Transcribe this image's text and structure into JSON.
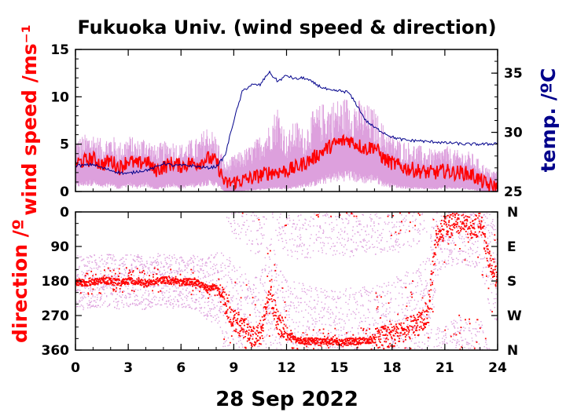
{
  "chart_data": [
    {
      "type": "line",
      "panel": "wind",
      "title": "Fukuoka Univ. (wind speed & direction)",
      "ylabel": "wind speed /ms⁻¹",
      "y2label": "temp. /ºC",
      "xlim": [
        0,
        24
      ],
      "ylim": [
        0,
        15
      ],
      "y2lim": [
        25,
        37
      ],
      "xticks": [
        "0",
        "3",
        "6",
        "9",
        "12",
        "15",
        "18",
        "21",
        "24"
      ],
      "yticks": [
        "0",
        "5",
        "10",
        "15"
      ],
      "y2ticks": [
        "25",
        "30",
        "35"
      ],
      "colors": {
        "mean": "#ff0000",
        "gust_range": "#dda0dd",
        "temperature": "#00008b"
      },
      "series": [
        {
          "key": "wind_mean",
          "x": [
            0,
            0.5,
            1,
            1.5,
            2,
            2.5,
            3,
            3.5,
            4,
            4.5,
            5,
            5.5,
            6,
            6.5,
            7,
            7.5,
            8,
            8.5,
            9,
            9.5,
            10,
            10.5,
            11,
            11.5,
            12,
            12.5,
            13,
            13.5,
            14,
            14.5,
            15,
            15.5,
            16,
            16.5,
            17,
            17.5,
            18,
            18.5,
            19,
            19.5,
            20,
            20.5,
            21,
            21.5,
            22,
            22.5,
            23,
            23.5,
            24
          ],
          "values": [
            3.0,
            3.2,
            3.5,
            2.8,
            3.3,
            2.5,
            3.3,
            2.8,
            3.3,
            2.2,
            2.6,
            3.0,
            2.7,
            3.0,
            3.0,
            3.5,
            3.2,
            0.8,
            1.0,
            1.2,
            1.4,
            1.7,
            2.0,
            2.1,
            2.2,
            2.5,
            3.0,
            3.5,
            4.2,
            4.8,
            5.2,
            5.5,
            5.0,
            4.5,
            4.8,
            3.5,
            3.0,
            2.6,
            2.4,
            2.2,
            2.0,
            2.0,
            2.2,
            2.0,
            2.0,
            1.8,
            1.2,
            0.6,
            0.5
          ]
        },
        {
          "key": "wind_max",
          "x": [
            0,
            0.5,
            1,
            1.5,
            2,
            2.5,
            3,
            3.5,
            4,
            4.5,
            5,
            5.5,
            6,
            6.5,
            7,
            7.5,
            8,
            8.5,
            9,
            9.5,
            10,
            10.5,
            11,
            11.5,
            12,
            12.5,
            13,
            13.5,
            14,
            14.5,
            15,
            15.5,
            16,
            16.5,
            17,
            17.5,
            18,
            18.5,
            19,
            19.5,
            20,
            20.5,
            21,
            21.5,
            22,
            22.5,
            23,
            23.5,
            24
          ],
          "values": [
            5.2,
            5.5,
            5.8,
            5.0,
            5.6,
            4.8,
            5.5,
            5.0,
            5.5,
            4.5,
            4.8,
            5.0,
            4.6,
            5.0,
            5.2,
            6.5,
            5.5,
            2.8,
            3.5,
            4.0,
            4.5,
            5.5,
            6.5,
            8.5,
            5.5,
            7.0,
            6.0,
            7.8,
            8.5,
            8.8,
            9.0,
            9.2,
            9.0,
            8.5,
            8.0,
            6.5,
            5.5,
            5.0,
            4.8,
            4.5,
            4.2,
            4.0,
            4.5,
            4.0,
            4.0,
            3.8,
            3.0,
            2.2,
            2.0
          ]
        },
        {
          "key": "wind_min",
          "x": [
            0,
            0.5,
            1,
            1.5,
            2,
            2.5,
            3,
            3.5,
            4,
            4.5,
            5,
            5.5,
            6,
            6.5,
            7,
            7.5,
            8,
            8.5,
            9,
            9.5,
            10,
            10.5,
            11,
            11.5,
            12,
            12.5,
            13,
            13.5,
            14,
            14.5,
            15,
            15.5,
            16,
            16.5,
            17,
            17.5,
            18,
            18.5,
            19,
            19.5,
            20,
            20.5,
            21,
            21.5,
            22,
            22.5,
            23,
            23.5,
            24
          ],
          "values": [
            0.8,
            1.0,
            1.2,
            0.6,
            1.0,
            0.4,
            1.0,
            0.5,
            1.0,
            0.3,
            0.6,
            0.9,
            0.5,
            0.8,
            0.9,
            1.2,
            1.0,
            0.0,
            0.0,
            0.1,
            0.2,
            0.3,
            0.4,
            0.5,
            0.4,
            0.6,
            0.8,
            1.0,
            1.4,
            1.8,
            2.0,
            2.2,
            1.8,
            1.6,
            1.8,
            1.0,
            0.8,
            0.6,
            0.5,
            0.4,
            0.4,
            0.4,
            0.5,
            0.4,
            0.4,
            0.3,
            0.1,
            0.0,
            0.0
          ]
        },
        {
          "key": "temperature",
          "axis": "right",
          "x": [
            0,
            0.5,
            1,
            1.5,
            2,
            2.5,
            3,
            3.5,
            4,
            4.5,
            5,
            5.5,
            6,
            6.5,
            7,
            7.5,
            8,
            8.5,
            9,
            9.5,
            10,
            10.5,
            11,
            11.5,
            12,
            12.5,
            13,
            13.5,
            14,
            14.5,
            15,
            15.5,
            16,
            16.5,
            17,
            17.5,
            18,
            18.5,
            19,
            19.5,
            20,
            20.5,
            21,
            21.5,
            22,
            22.5,
            23,
            23.5,
            24
          ],
          "values": [
            27.2,
            27.2,
            27.3,
            27.0,
            26.8,
            26.6,
            26.5,
            26.7,
            26.8,
            27.0,
            27.4,
            27.2,
            27.2,
            27.2,
            27.1,
            27.0,
            27.1,
            28.0,
            31.0,
            33.5,
            34.0,
            34.0,
            35.1,
            34.3,
            34.8,
            34.5,
            34.6,
            34.2,
            33.8,
            33.5,
            33.5,
            33.4,
            32.3,
            31.0,
            30.4,
            30.0,
            29.6,
            29.4,
            29.3,
            29.3,
            29.2,
            29.2,
            29.1,
            29.1,
            29.0,
            29.0,
            29.0,
            29.0,
            29.1
          ]
        }
      ]
    },
    {
      "type": "scatter",
      "panel": "direction",
      "ylabel": "direction /º",
      "xlabel": "28 Sep 2022",
      "xlim": [
        0,
        24
      ],
      "ylim": [
        360,
        0
      ],
      "yticks": [
        "0",
        "90",
        "180",
        "270",
        "360"
      ],
      "y2ticks": [
        "N",
        "E",
        "S",
        "W",
        "N"
      ],
      "colors": {
        "mean": "#ff0000",
        "instant": "#dda0dd"
      },
      "series": [
        {
          "key": "direction_mean",
          "x": [
            0,
            0.5,
            1,
            1.5,
            2,
            2.5,
            3,
            3.5,
            4,
            4.5,
            5,
            5.5,
            6,
            6.5,
            7,
            7.5,
            8,
            8.5,
            9,
            9.5,
            10,
            10.5,
            11,
            11.5,
            12,
            12.5,
            13,
            13.5,
            14,
            14.5,
            15,
            15.5,
            16,
            16.5,
            17,
            17.5,
            18,
            18.5,
            19,
            19.5,
            20,
            20.5,
            21,
            21.5,
            22,
            22.5,
            23,
            23.5,
            24
          ],
          "values": [
            180,
            185,
            180,
            175,
            180,
            182,
            178,
            180,
            185,
            178,
            175,
            180,
            182,
            180,
            185,
            200,
            190,
            240,
            280,
            300,
            320,
            315,
            200,
            290,
            320,
            330,
            335,
            335,
            338,
            335,
            338,
            336,
            335,
            333,
            330,
            325,
            320,
            310,
            300,
            290,
            260,
            60,
            40,
            30,
            20,
            40,
            30,
            120,
            180
          ]
        },
        {
          "key": "direction_spread",
          "x": [
            0,
            0.5,
            1,
            1.5,
            2,
            2.5,
            3,
            3.5,
            4,
            4.5,
            5,
            5.5,
            6,
            6.5,
            7,
            7.5,
            8,
            8.5,
            9,
            9.5,
            10,
            10.5,
            11,
            11.5,
            12,
            12.5,
            13,
            13.5,
            14,
            14.5,
            15,
            15.5,
            16,
            16.5,
            17,
            17.5,
            18,
            18.5,
            19,
            19.5,
            20,
            20.5,
            21,
            21.5,
            22,
            22.5,
            23,
            23.5,
            24
          ],
          "values": [
            70,
            70,
            70,
            70,
            70,
            70,
            70,
            70,
            70,
            70,
            70,
            70,
            70,
            70,
            70,
            90,
            90,
            140,
            150,
            150,
            150,
            150,
            150,
            150,
            150,
            150,
            150,
            140,
            140,
            140,
            140,
            140,
            140,
            140,
            140,
            140,
            150,
            150,
            150,
            150,
            150,
            120,
            110,
            110,
            110,
            110,
            110,
            130,
            130
          ]
        }
      ]
    }
  ]
}
